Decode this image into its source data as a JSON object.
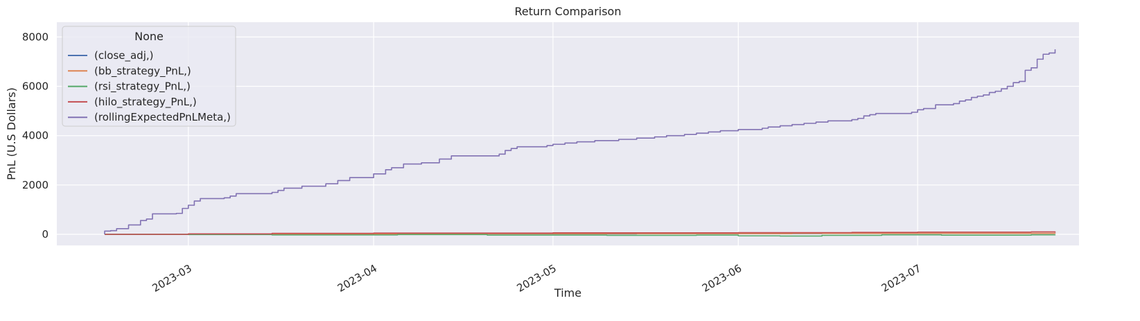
{
  "chart_data": {
    "type": "line",
    "title": "Return Comparison",
    "xlabel": "Time",
    "ylabel": "PnL (U.S Dollars)",
    "x_range": [
      "2023-02-07",
      "2023-07-28"
    ],
    "ylim": [
      -450,
      8600
    ],
    "x_ticks": [
      {
        "date": "2023-03-01",
        "label": "2023-03"
      },
      {
        "date": "2023-04-01",
        "label": "2023-04"
      },
      {
        "date": "2023-05-01",
        "label": "2023-05"
      },
      {
        "date": "2023-06-01",
        "label": "2023-06"
      },
      {
        "date": "2023-07-01",
        "label": "2023-07"
      }
    ],
    "y_ticks": [
      0,
      2000,
      4000,
      6000,
      8000
    ],
    "grid": true,
    "legend": {
      "title": "None",
      "position": "top-left"
    },
    "series": [
      {
        "name": "(close_adj,)",
        "color": "#4c72b0",
        "step": true,
        "points": [
          [
            "2023-02-15",
            0
          ],
          [
            "2023-03-15",
            10
          ],
          [
            "2023-04-15",
            20
          ],
          [
            "2023-05-15",
            30
          ],
          [
            "2023-06-15",
            35
          ],
          [
            "2023-07-24",
            40
          ]
        ]
      },
      {
        "name": "(bb_strategy_PnL,)",
        "color": "#dd8452",
        "step": true,
        "points": [
          [
            "2023-02-15",
            0
          ],
          [
            "2023-03-10",
            15
          ],
          [
            "2023-04-10",
            25
          ],
          [
            "2023-05-10",
            30
          ],
          [
            "2023-06-10",
            40
          ],
          [
            "2023-07-24",
            50
          ]
        ]
      },
      {
        "name": "(rsi_strategy_PnL,)",
        "color": "#55a868",
        "step": true,
        "points": [
          [
            "2023-02-15",
            0
          ],
          [
            "2023-03-01",
            -10
          ],
          [
            "2023-03-15",
            -25
          ],
          [
            "2023-04-05",
            -10
          ],
          [
            "2023-04-20",
            -30
          ],
          [
            "2023-05-10",
            -40
          ],
          [
            "2023-05-25",
            -30
          ],
          [
            "2023-06-01",
            -60
          ],
          [
            "2023-06-08",
            -70
          ],
          [
            "2023-06-15",
            -40
          ],
          [
            "2023-06-25",
            -20
          ],
          [
            "2023-07-05",
            -35
          ],
          [
            "2023-07-20",
            -20
          ],
          [
            "2023-07-24",
            -10
          ]
        ]
      },
      {
        "name": "(hilo_strategy_PnL,)",
        "color": "#c44e52",
        "step": true,
        "points": [
          [
            "2023-02-15",
            0
          ],
          [
            "2023-03-01",
            20
          ],
          [
            "2023-03-15",
            40
          ],
          [
            "2023-04-01",
            50
          ],
          [
            "2023-05-01",
            60
          ],
          [
            "2023-06-01",
            70
          ],
          [
            "2023-06-20",
            80
          ],
          [
            "2023-07-01",
            90
          ],
          [
            "2023-07-20",
            100
          ],
          [
            "2023-07-24",
            70
          ]
        ]
      },
      {
        "name": "(rollingExpectedPnLMeta,)",
        "color": "#8172b3",
        "step": true,
        "points": [
          [
            "2023-02-15",
            0
          ],
          [
            "2023-02-15",
            130
          ],
          [
            "2023-02-16",
            150
          ],
          [
            "2023-02-17",
            230
          ],
          [
            "2023-02-19",
            380
          ],
          [
            "2023-02-21",
            560
          ],
          [
            "2023-02-22",
            620
          ],
          [
            "2023-02-23",
            830
          ],
          [
            "2023-02-27",
            850
          ],
          [
            "2023-02-28",
            1050
          ],
          [
            "2023-03-01",
            1180
          ],
          [
            "2023-03-02",
            1350
          ],
          [
            "2023-03-03",
            1450
          ],
          [
            "2023-03-07",
            1480
          ],
          [
            "2023-03-08",
            1550
          ],
          [
            "2023-03-09",
            1650
          ],
          [
            "2023-03-15",
            1700
          ],
          [
            "2023-03-16",
            1780
          ],
          [
            "2023-03-17",
            1870
          ],
          [
            "2023-03-20",
            1950
          ],
          [
            "2023-03-24",
            2050
          ],
          [
            "2023-03-26",
            2180
          ],
          [
            "2023-03-28",
            2300
          ],
          [
            "2023-04-01",
            2450
          ],
          [
            "2023-04-03",
            2620
          ],
          [
            "2023-04-04",
            2700
          ],
          [
            "2023-04-06",
            2850
          ],
          [
            "2023-04-09",
            2900
          ],
          [
            "2023-04-12",
            3050
          ],
          [
            "2023-04-14",
            3180
          ],
          [
            "2023-04-22",
            3250
          ],
          [
            "2023-04-23",
            3400
          ],
          [
            "2023-04-24",
            3480
          ],
          [
            "2023-04-25",
            3550
          ],
          [
            "2023-04-30",
            3600
          ],
          [
            "2023-05-01",
            3650
          ],
          [
            "2023-05-03",
            3700
          ],
          [
            "2023-05-05",
            3750
          ],
          [
            "2023-05-08",
            3800
          ],
          [
            "2023-05-12",
            3850
          ],
          [
            "2023-05-15",
            3900
          ],
          [
            "2023-05-18",
            3950
          ],
          [
            "2023-05-20",
            4000
          ],
          [
            "2023-05-23",
            4050
          ],
          [
            "2023-05-25",
            4100
          ],
          [
            "2023-05-27",
            4150
          ],
          [
            "2023-05-29",
            4200
          ],
          [
            "2023-06-01",
            4250
          ],
          [
            "2023-06-05",
            4300
          ],
          [
            "2023-06-06",
            4350
          ],
          [
            "2023-06-08",
            4400
          ],
          [
            "2023-06-10",
            4450
          ],
          [
            "2023-06-12",
            4500
          ],
          [
            "2023-06-14",
            4550
          ],
          [
            "2023-06-16",
            4600
          ],
          [
            "2023-06-20",
            4650
          ],
          [
            "2023-06-21",
            4700
          ],
          [
            "2023-06-22",
            4800
          ],
          [
            "2023-06-23",
            4850
          ],
          [
            "2023-06-24",
            4900
          ],
          [
            "2023-06-30",
            4950
          ],
          [
            "2023-07-01",
            5050
          ],
          [
            "2023-07-02",
            5100
          ],
          [
            "2023-07-04",
            5250
          ],
          [
            "2023-07-07",
            5300
          ],
          [
            "2023-07-08",
            5400
          ],
          [
            "2023-07-09",
            5450
          ],
          [
            "2023-07-10",
            5550
          ],
          [
            "2023-07-11",
            5600
          ],
          [
            "2023-07-12",
            5650
          ],
          [
            "2023-07-13",
            5750
          ],
          [
            "2023-07-14",
            5800
          ],
          [
            "2023-07-15",
            5900
          ],
          [
            "2023-07-16",
            6000
          ],
          [
            "2023-07-17",
            6150
          ],
          [
            "2023-07-18",
            6200
          ],
          [
            "2023-07-19",
            6650
          ],
          [
            "2023-07-20",
            6750
          ],
          [
            "2023-07-21",
            7100
          ],
          [
            "2023-07-22",
            7300
          ],
          [
            "2023-07-23",
            7350
          ],
          [
            "2023-07-24",
            7500
          ]
        ]
      }
    ]
  }
}
